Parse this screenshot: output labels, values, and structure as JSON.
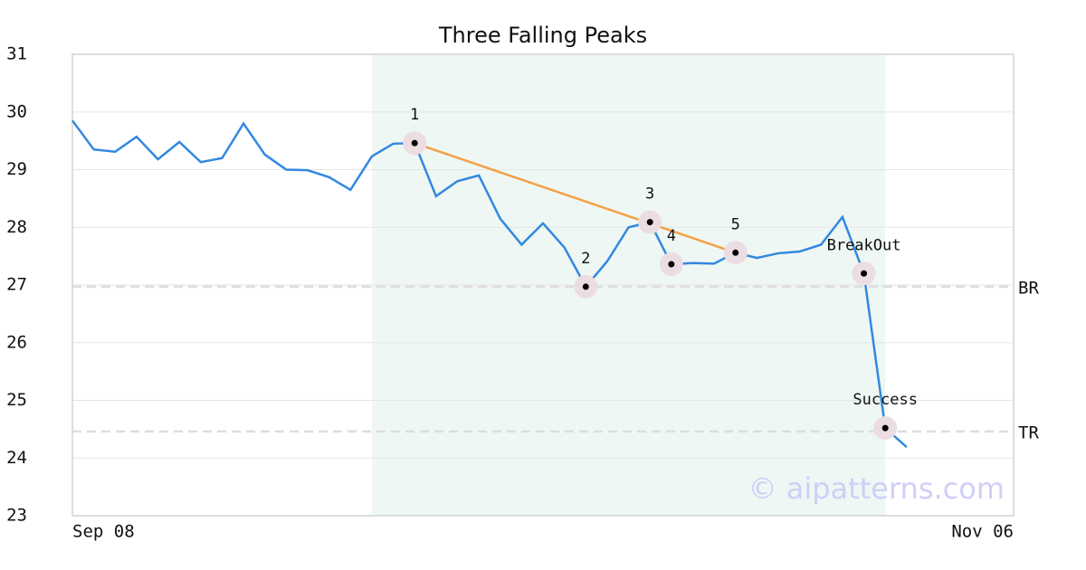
{
  "chart_data": {
    "type": "line",
    "title": "Three Falling Peaks",
    "categories": [
      "Sep 08",
      null,
      null,
      null,
      null,
      null,
      null,
      null,
      null,
      null,
      null,
      null,
      null,
      null,
      null,
      null,
      null,
      null,
      null,
      null,
      null,
      null,
      null,
      null,
      null,
      null,
      null,
      null,
      null,
      null,
      null,
      null,
      null,
      null,
      null,
      null,
      null,
      null,
      null,
      null,
      null,
      null,
      null,
      null,
      "Nov 06"
    ],
    "values": [
      29.85,
      29.35,
      29.31,
      29.57,
      29.18,
      29.48,
      29.13,
      29.2,
      29.8,
      29.26,
      29.0,
      28.99,
      28.87,
      28.65,
      29.23,
      29.45,
      29.46,
      28.54,
      28.8,
      28.9,
      28.15,
      27.7,
      28.07,
      27.65,
      26.97,
      27.41,
      28.0,
      28.09,
      27.36,
      27.38,
      27.37,
      27.56,
      27.47,
      27.55,
      27.58,
      27.7,
      28.18,
      27.2,
      24.52,
      24.19,
      null,
      null,
      null,
      null,
      null
    ],
    "color": "#3388e0",
    "ylim": [
      23,
      31
    ],
    "yticks": [
      23,
      24,
      25,
      26,
      27,
      28,
      29,
      30,
      31
    ],
    "grid": true,
    "highlight": [
      14,
      38
    ],
    "highlight_color": "#eef7f3",
    "trendline": [
      16,
      31
    ],
    "trendline_color": "#f5a045",
    "reference_lines": [
      {
        "label": "BR",
        "value": 26.97
      },
      {
        "label": "TR",
        "value": 24.46
      }
    ],
    "annotations": [
      {
        "text": "1",
        "index": 16
      },
      {
        "text": "2",
        "index": 24
      },
      {
        "text": "3",
        "index": 27
      },
      {
        "text": "4",
        "index": 28
      },
      {
        "text": "5",
        "index": 31
      },
      {
        "text": "BreakOut",
        "index": 37
      },
      {
        "text": "Success",
        "index": 38
      }
    ],
    "watermark": "© aipatterns.com"
  }
}
